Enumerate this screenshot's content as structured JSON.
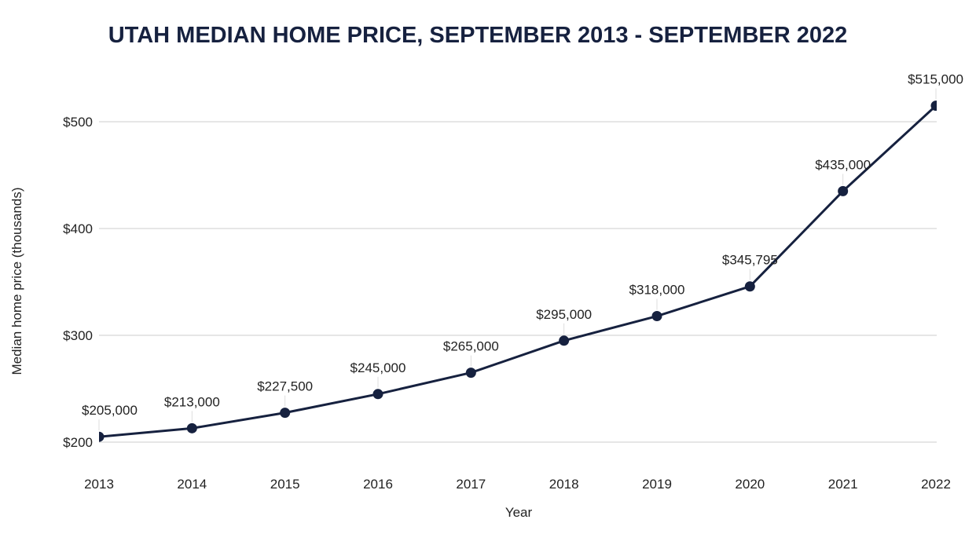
{
  "chart_data": {
    "type": "line",
    "title": "UTAH MEDIAN HOME PRICE, SEPTEMBER 2013 - SEPTEMBER 2022",
    "xlabel": "Year",
    "ylabel": "Median home price (thousands)",
    "x": [
      "2013",
      "2014",
      "2015",
      "2016",
      "2017",
      "2018",
      "2019",
      "2020",
      "2021",
      "2022"
    ],
    "values": [
      205,
      213,
      227.5,
      245,
      265,
      295,
      318,
      345.795,
      435,
      515
    ],
    "data_labels": [
      "$205,000",
      "$213,000",
      "$227,500",
      "$245,000",
      "$265,000",
      "$295,000",
      "$318,000",
      "$345,795",
      "$435,000",
      "$515,000"
    ],
    "yticks": [
      200,
      300,
      400,
      500
    ],
    "ytick_labels": [
      "$200",
      "$300",
      "$400",
      "$500"
    ],
    "ylim": [
      200,
      515
    ],
    "grid": true,
    "legend": "none",
    "colors": {
      "line": "#16213f",
      "grid": "#cccccc",
      "title": "#16213f"
    }
  }
}
